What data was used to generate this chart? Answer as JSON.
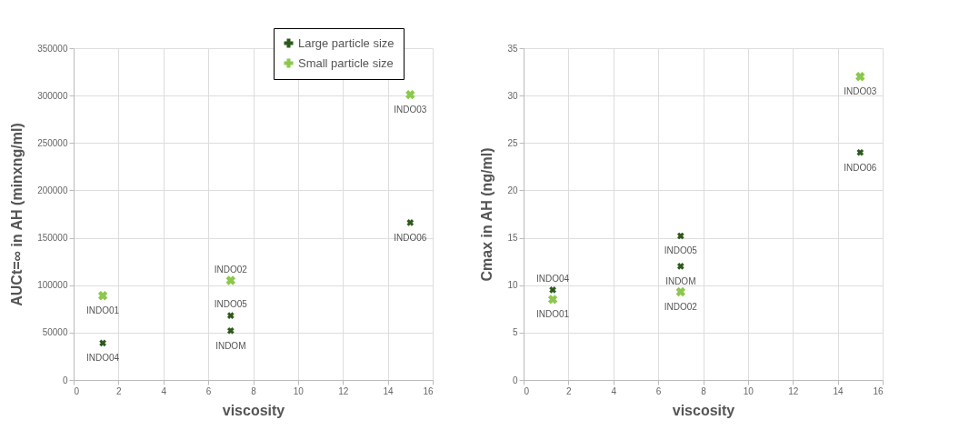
{
  "chart_data": [
    {
      "type": "scatter",
      "xlabel": "viscosity",
      "ylabel": "AUCt=∞ in AH (minxng/ml)",
      "xlim": [
        0,
        16
      ],
      "xticks": [
        0,
        2,
        4,
        6,
        8,
        10,
        12,
        14,
        16
      ],
      "ylim": [
        0,
        350000
      ],
      "yticks": [
        0,
        50000,
        100000,
        150000,
        200000,
        250000,
        300000,
        350000
      ],
      "grid": true,
      "legend": "top right",
      "marker": "cross",
      "series": [
        {
          "name": "Large particle size",
          "color": "#2d5a1b",
          "x": [
            1.3,
            7,
            7,
            15
          ],
          "values": [
            39000,
            52000,
            68000,
            166000
          ]
        },
        {
          "name": "Small particle size",
          "color": "#8cc84b",
          "x": [
            1.3,
            7,
            15
          ],
          "values": [
            89000,
            105000,
            301000
          ]
        }
      ],
      "annotations": [
        {
          "text": "INDO04",
          "x": 1.3,
          "y": 39000
        },
        {
          "text": "INDOM",
          "x": 7,
          "y": 52000
        },
        {
          "text": "INDO05",
          "x": 7,
          "y": 68000
        },
        {
          "text": "INDO06",
          "x": 15,
          "y": 166000
        },
        {
          "text": "INDO01",
          "x": 1.3,
          "y": 89000
        },
        {
          "text": "INDO02",
          "x": 7,
          "y": 105000
        },
        {
          "text": "INDO03",
          "x": 15,
          "y": 301000
        }
      ]
    },
    {
      "type": "scatter",
      "xlabel": "viscosity",
      "ylabel": "Cmax in AH (ng/ml)",
      "xlim": [
        0,
        16
      ],
      "xticks": [
        0,
        2,
        4,
        6,
        8,
        10,
        12,
        14,
        16
      ],
      "ylim": [
        0,
        35
      ],
      "yticks": [
        0,
        5,
        10,
        15,
        20,
        25,
        30,
        35
      ],
      "grid": true,
      "marker": "cross",
      "series": [
        {
          "color": "#2d5a1b",
          "x": [
            1.3,
            7,
            7,
            15
          ],
          "values": [
            9.5,
            12,
            15.2,
            24
          ]
        },
        {
          "color": "#8cc84b",
          "x": [
            1.3,
            7,
            15
          ],
          "values": [
            8.5,
            9.3,
            32
          ]
        }
      ],
      "annotations": [
        {
          "text": "INDO04",
          "x": 1.3,
          "y": 9.5
        },
        {
          "text": "INDOM",
          "x": 7,
          "y": 12
        },
        {
          "text": "INDO05",
          "x": 7,
          "y": 15.2
        },
        {
          "text": "INDO06",
          "x": 15,
          "y": 24
        },
        {
          "text": "INDO01",
          "x": 1.3,
          "y": 8.5
        },
        {
          "text": "INDO02",
          "x": 7,
          "y": 9.3
        },
        {
          "text": "INDO03",
          "x": 15,
          "y": 32
        }
      ]
    }
  ]
}
